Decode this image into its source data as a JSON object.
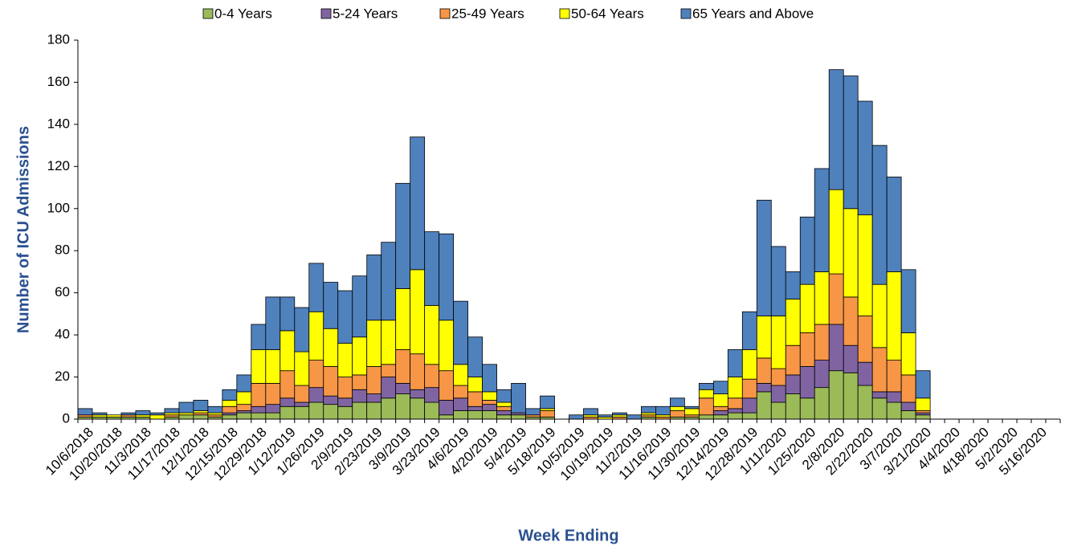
{
  "chart_data": {
    "type": "stacked_bar",
    "x_label": "Week Ending",
    "y_label": "Number of ICU Admissions",
    "legend": "top",
    "ylim": [
      0,
      180
    ],
    "yticks": [
      0,
      20,
      40,
      60,
      80,
      100,
      120,
      140,
      160,
      180
    ],
    "categories": [
      "10/6/2018",
      null,
      "10/20/2018",
      null,
      "11/3/2018",
      null,
      "11/17/2018",
      null,
      "12/1/2018",
      null,
      "12/15/2018",
      null,
      "12/29/2018",
      null,
      "1/12/2019",
      null,
      "1/26/2019",
      null,
      "2/9/2019",
      null,
      "2/23/2019",
      null,
      "3/9/2019",
      null,
      "3/23/2019",
      null,
      "4/6/2019",
      null,
      "4/20/2019",
      null,
      "5/4/2019",
      null,
      "5/18/2019",
      null,
      "10/5/2019",
      null,
      "10/19/2019",
      null,
      "11/2/2019",
      null,
      "11/16/2019",
      null,
      "11/30/2019",
      null,
      "12/14/2019",
      null,
      "12/28/2019",
      null,
      "1/11/2020",
      null,
      "1/25/2020",
      null,
      "2/8/2020",
      null,
      "2/22/2020",
      null,
      "3/7/2020",
      null,
      "3/21/2020",
      null,
      "4/4/2020",
      null,
      "4/18/2020",
      null,
      "5/2/2020",
      null,
      "5/16/2020",
      null
    ],
    "series": [
      {
        "name": "0-4 Years",
        "color": "#9bbb59",
        "values": [
          1,
          1,
          1,
          1,
          1,
          0,
          1,
          2,
          2,
          1,
          2,
          3,
          3,
          3,
          6,
          6,
          8,
          7,
          6,
          8,
          8,
          10,
          12,
          10,
          8,
          2,
          4,
          4,
          4,
          2,
          2,
          1,
          1,
          0,
          0,
          0,
          0,
          0,
          0,
          1,
          0,
          1,
          1,
          2,
          2,
          3,
          3,
          13,
          8,
          12,
          10,
          15,
          23,
          22,
          16,
          10,
          8,
          4,
          2,
          0,
          0,
          0,
          0,
          0,
          0,
          0,
          0,
          0
        ]
      },
      {
        "name": "5-24 Years",
        "color": "#8064a2",
        "values": [
          0,
          0,
          0,
          0,
          0,
          0,
          0,
          0,
          0,
          0,
          1,
          1,
          3,
          4,
          4,
          2,
          7,
          4,
          4,
          6,
          4,
          10,
          5,
          4,
          7,
          7,
          6,
          2,
          3,
          2,
          1,
          0,
          0,
          0,
          0,
          0,
          0,
          0,
          0,
          0,
          0,
          0,
          0,
          0,
          2,
          2,
          7,
          4,
          8,
          9,
          15,
          13,
          22,
          13,
          11,
          3,
          5,
          4,
          1,
          0,
          0,
          0,
          0,
          0,
          0,
          0,
          0,
          0
        ]
      },
      {
        "name": "25-49 Years",
        "color": "#f79646",
        "values": [
          1,
          0,
          0,
          1,
          0,
          0,
          1,
          0,
          1,
          1,
          3,
          3,
          11,
          10,
          13,
          8,
          13,
          14,
          10,
          7,
          13,
          6,
          16,
          17,
          11,
          14,
          6,
          7,
          2,
          2,
          0,
          1,
          3,
          0,
          0,
          1,
          0,
          1,
          0,
          1,
          1,
          3,
          1,
          8,
          2,
          5,
          9,
          12,
          8,
          14,
          16,
          17,
          24,
          23,
          22,
          21,
          15,
          13,
          1,
          0,
          0,
          0,
          0,
          0,
          0,
          0,
          0,
          0
        ]
      },
      {
        "name": "50-64 Years",
        "color": "#ffff00",
        "values": [
          0,
          1,
          1,
          0,
          1,
          2,
          1,
          1,
          1,
          1,
          3,
          6,
          16,
          16,
          19,
          16,
          23,
          18,
          16,
          18,
          22,
          21,
          29,
          40,
          28,
          24,
          10,
          7,
          4,
          2,
          0,
          0,
          1,
          0,
          0,
          1,
          1,
          1,
          0,
          1,
          1,
          2,
          3,
          4,
          6,
          10,
          14,
          20,
          25,
          22,
          23,
          25,
          40,
          42,
          48,
          30,
          42,
          20,
          6,
          0,
          0,
          0,
          0,
          0,
          0,
          0,
          0,
          0
        ]
      },
      {
        "name": "65 Years and Above",
        "color": "#4f81bd",
        "values": [
          3,
          1,
          0,
          1,
          2,
          1,
          2,
          5,
          5,
          3,
          5,
          8,
          12,
          25,
          16,
          21,
          23,
          22,
          25,
          29,
          31,
          37,
          50,
          63,
          35,
          41,
          30,
          19,
          13,
          6,
          14,
          3,
          6,
          0,
          2,
          3,
          1,
          1,
          2,
          3,
          4,
          4,
          1,
          3,
          6,
          13,
          18,
          55,
          33,
          13,
          32,
          49,
          57,
          63,
          54,
          66,
          45,
          30,
          13,
          0,
          0,
          0,
          0,
          0,
          0,
          0,
          0,
          0
        ]
      }
    ]
  }
}
